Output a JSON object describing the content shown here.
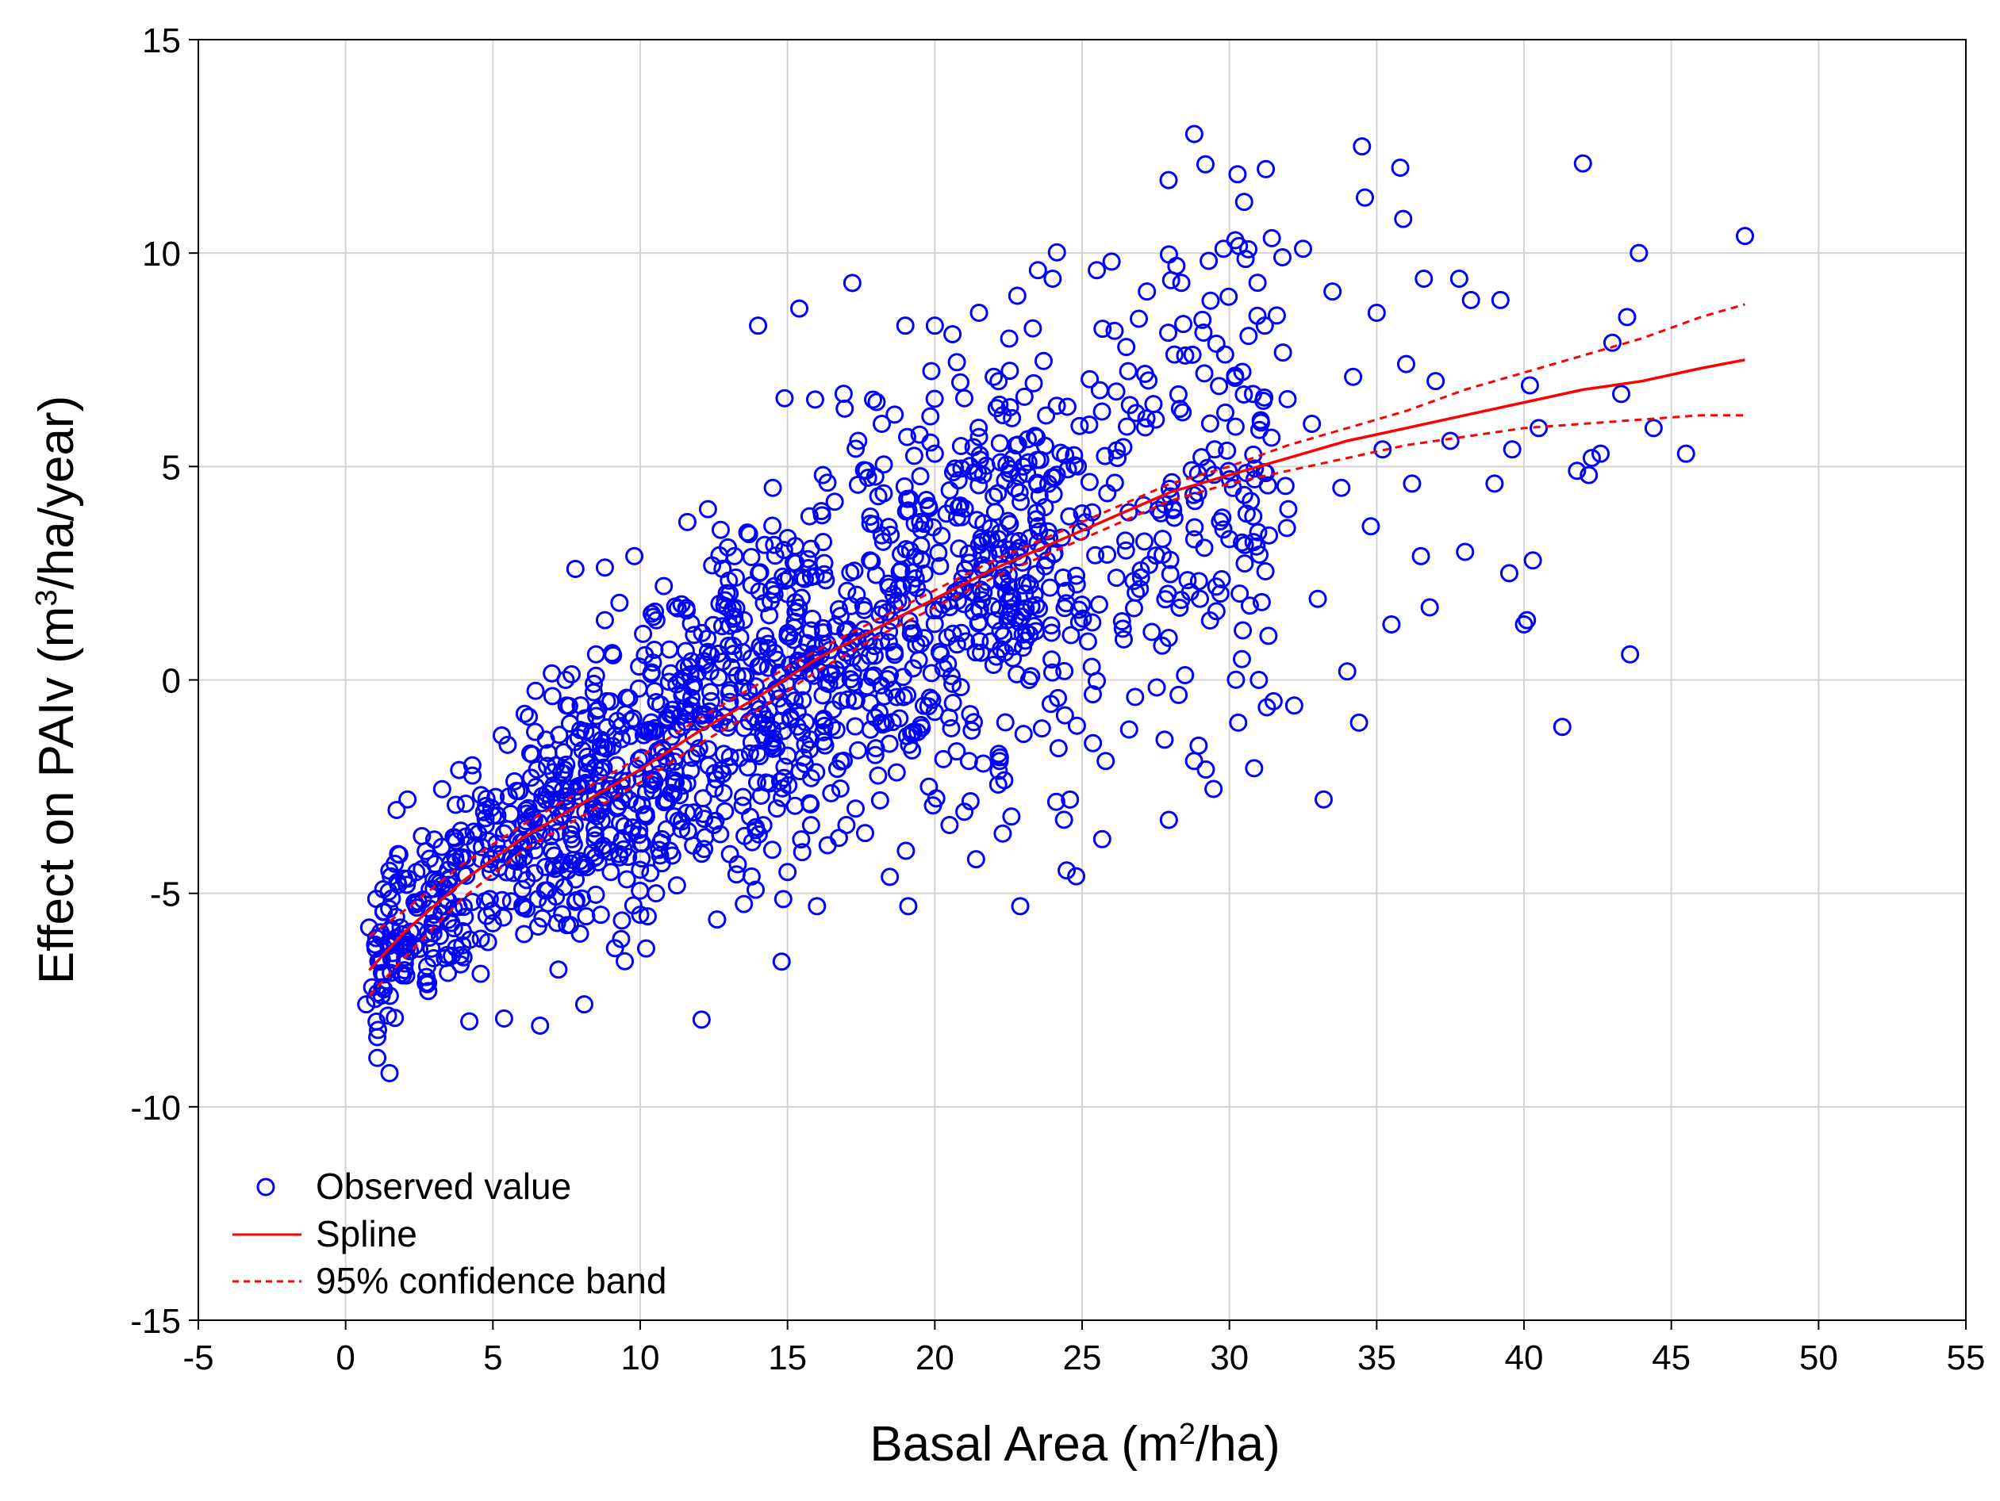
{
  "chart_data": {
    "type": "scatter",
    "xlabel": "Basal Area (m",
    "xlabel_sup": "2",
    "xlabel_end": "/ha)",
    "ylabel": "Effect on PAIv (m",
    "ylabel_sup": "3",
    "ylabel_end": "/ha/year)",
    "xlim": [
      -5,
      55
    ],
    "ylim": [
      -15,
      15
    ],
    "x_ticks": [
      -5,
      0,
      5,
      10,
      15,
      20,
      25,
      30,
      35,
      40,
      45,
      50,
      55
    ],
    "y_ticks": [
      -15,
      -10,
      -5,
      0,
      5,
      10,
      15
    ],
    "grid": true,
    "legend_placement": "bottom-left",
    "colors": {
      "points": "#0000ff",
      "spline": "#ff0000",
      "band": "#ff0000"
    },
    "legend": [
      {
        "label": "Observed value",
        "kind": "marker"
      },
      {
        "label": "Spline",
        "kind": "solid-line"
      },
      {
        "label": "95% confidence band",
        "kind": "dashed-line"
      }
    ],
    "spline": {
      "name": "Spline",
      "x": [
        0.8,
        2,
        4,
        6,
        8,
        10,
        12,
        14,
        16,
        18,
        20,
        22,
        24,
        26,
        28,
        30,
        32,
        34,
        36,
        38,
        40,
        42,
        44,
        46,
        47.5
      ],
      "y": [
        -6.8,
        -5.9,
        -4.7,
        -3.7,
        -2.9,
        -2.1,
        -1.2,
        -0.4,
        0.5,
        1.2,
        1.9,
        2.6,
        3.2,
        3.8,
        4.4,
        4.8,
        5.2,
        5.6,
        5.9,
        6.2,
        6.5,
        6.8,
        7.0,
        7.3,
        7.5
      ]
    },
    "band_upper": {
      "name": "95% confidence band",
      "x": [
        0.8,
        2,
        4,
        6,
        8,
        10,
        12,
        14,
        16,
        18,
        20,
        22,
        24,
        26,
        28,
        30,
        32,
        34,
        36,
        38,
        40,
        42,
        44,
        46,
        47.5
      ],
      "y": [
        -6.0,
        -5.4,
        -4.3,
        -3.4,
        -2.6,
        -1.8,
        -0.9,
        -0.1,
        0.7,
        1.4,
        2.1,
        2.8,
        3.4,
        4.0,
        4.6,
        5.0,
        5.5,
        5.9,
        6.3,
        6.8,
        7.2,
        7.6,
        8.0,
        8.5,
        8.8
      ]
    },
    "band_lower": {
      "name": "95% confidence band",
      "x": [
        0.8,
        2,
        4,
        6,
        8,
        10,
        12,
        14,
        16,
        18,
        20,
        22,
        24,
        26,
        28,
        30,
        32,
        34,
        36,
        38,
        40,
        42,
        44,
        46,
        47.5
      ],
      "y": [
        -7.4,
        -6.5,
        -5.1,
        -4.0,
        -3.2,
        -2.4,
        -1.5,
        -0.7,
        0.2,
        1.0,
        1.7,
        2.4,
        3.0,
        3.6,
        4.2,
        4.6,
        4.9,
        5.2,
        5.5,
        5.7,
        5.9,
        6.0,
        6.1,
        6.2,
        6.2
      ]
    },
    "series": [
      {
        "name": "Observed value",
        "points": [
          [
            0.7,
            -7.6
          ],
          [
            0.9,
            -7.2
          ],
          [
            1.1,
            -8.2
          ],
          [
            1.3,
            -6.9
          ],
          [
            1.0,
            -6.2
          ],
          [
            1.2,
            -6.6
          ],
          [
            0.8,
            -5.8
          ],
          [
            1.5,
            -7.4
          ],
          [
            2.0,
            -6.8
          ],
          [
            2.2,
            -5.9
          ],
          [
            2.5,
            -6.3
          ],
          [
            2.8,
            -7.1
          ],
          [
            3.0,
            -5.5
          ],
          [
            3.2,
            -6.0
          ],
          [
            3.5,
            -4.8
          ],
          [
            2.1,
            -2.8
          ],
          [
            2.4,
            -4.5
          ],
          [
            4.2,
            -8.0
          ],
          [
            4.0,
            -6.5
          ],
          [
            4.3,
            -5.2
          ],
          [
            4.5,
            -3.6
          ],
          [
            4.6,
            -4.2
          ],
          [
            4.3,
            -2.0
          ],
          [
            4.7,
            -3.1
          ],
          [
            5.0,
            -5.7
          ],
          [
            5.2,
            -4.4
          ],
          [
            5.5,
            -3.5
          ],
          [
            5.8,
            -2.6
          ],
          [
            5.3,
            -1.3
          ],
          [
            6.0,
            -4.9
          ],
          [
            6.2,
            -3.8
          ],
          [
            6.5,
            -2.1
          ],
          [
            6.8,
            -1.4
          ],
          [
            7.0,
            -4.0
          ],
          [
            7.2,
            -3.0
          ],
          [
            7.5,
            -0.6
          ],
          [
            7.8,
            -5.2
          ],
          [
            8.0,
            -2.5
          ],
          [
            8.2,
            -1.8
          ],
          [
            8.5,
            0.6
          ],
          [
            8.1,
            -7.6
          ],
          [
            8.8,
            1.4
          ],
          [
            7.8,
            2.6
          ],
          [
            9.0,
            -4.5
          ],
          [
            9.2,
            -2.0
          ],
          [
            9.5,
            -0.8
          ],
          [
            9.8,
            2.9
          ],
          [
            10.0,
            -5.5
          ],
          [
            10.2,
            -3.2
          ],
          [
            10.5,
            -1.2
          ],
          [
            10.5,
            1.6
          ],
          [
            10.8,
            2.2
          ],
          [
            11.0,
            -4.0
          ],
          [
            11.2,
            -2.4
          ],
          [
            11.5,
            0.3
          ],
          [
            11.6,
            3.7
          ],
          [
            12.0,
            -1.6
          ],
          [
            12.1,
            1.1
          ],
          [
            12.3,
            4.0
          ],
          [
            12.5,
            -3.4
          ],
          [
            12.8,
            -2.2
          ],
          [
            13.0,
            0.8
          ],
          [
            13.2,
            2.9
          ],
          [
            13.5,
            -0.5
          ],
          [
            13.8,
            -3.8
          ],
          [
            14.0,
            -1.0
          ],
          [
            14.0,
            8.3
          ],
          [
            14.2,
            1.8
          ],
          [
            14.5,
            4.5
          ],
          [
            14.8,
            -6.6
          ],
          [
            14.9,
            6.6
          ],
          [
            15.0,
            -4.5
          ],
          [
            15.2,
            0.2
          ],
          [
            15.4,
            8.7
          ],
          [
            15.5,
            2.4
          ],
          [
            15.8,
            -2.3
          ],
          [
            16.0,
            -5.3
          ],
          [
            16.2,
            4.8
          ],
          [
            16.5,
            -1.1
          ],
          [
            16.8,
            1.5
          ],
          [
            17.0,
            -3.4
          ],
          [
            17.2,
            9.3
          ],
          [
            17.4,
            5.6
          ],
          [
            17.5,
            0.4
          ],
          [
            17.8,
            2.8
          ],
          [
            18.0,
            -1.6
          ],
          [
            18.2,
            6.0
          ],
          [
            18.5,
            3.4
          ],
          [
            18.8,
            -0.9
          ],
          [
            19.0,
            8.3
          ],
          [
            19.1,
            -5.3
          ],
          [
            19.2,
            1.2
          ],
          [
            19.5,
            3.7
          ],
          [
            19.8,
            -2.5
          ],
          [
            20.0,
            5.3
          ],
          [
            20.0,
            8.3
          ],
          [
            20.2,
            0.6
          ],
          [
            20.5,
            -3.4
          ],
          [
            20.6,
            8.1
          ],
          [
            20.8,
            2.1
          ],
          [
            21.0,
            6.6
          ],
          [
            21.2,
            -0.8
          ],
          [
            21.4,
            -4.2
          ],
          [
            21.5,
            8.6
          ],
          [
            21.8,
            3.3
          ],
          [
            22.0,
            7.1
          ],
          [
            22.2,
            -1.9
          ],
          [
            22.5,
            1.5
          ],
          [
            22.6,
            -3.2
          ],
          [
            22.8,
            9.0
          ],
          [
            22.9,
            -5.3
          ],
          [
            23.0,
            5.0
          ],
          [
            23.2,
            0.0
          ],
          [
            23.5,
            9.6
          ],
          [
            23.8,
            2.8
          ],
          [
            24.0,
            9.4
          ],
          [
            24.2,
            -1.6
          ],
          [
            24.5,
            6.4
          ],
          [
            24.8,
            -4.6
          ],
          [
            25.0,
            3.9
          ],
          [
            25.2,
            0.9
          ],
          [
            25.5,
            9.6
          ],
          [
            25.8,
            -1.9
          ],
          [
            26.0,
            9.8
          ],
          [
            26.2,
            5.2
          ],
          [
            26.5,
            7.8
          ],
          [
            26.8,
            -0.4
          ],
          [
            27.0,
            2.4
          ],
          [
            27.2,
            9.1
          ],
          [
            27.5,
            6.1
          ],
          [
            27.8,
            -1.4
          ],
          [
            28.0,
            4.3
          ],
          [
            28.2,
            9.7
          ],
          [
            28.5,
            7.6
          ],
          [
            28.8,
            -1.9
          ],
          [
            29.0,
            1.9
          ],
          [
            29.2,
            -2.1
          ],
          [
            29.5,
            5.4
          ],
          [
            29.8,
            10.1
          ],
          [
            30.0,
            3.3
          ],
          [
            30.2,
            10.3
          ],
          [
            30.3,
            -1.0
          ],
          [
            30.5,
            11.2
          ],
          [
            30.8,
            6.7
          ],
          [
            31.0,
            0.0
          ],
          [
            31.2,
            8.3
          ],
          [
            31.5,
            -0.5
          ],
          [
            31.8,
            9.9
          ],
          [
            32.0,
            4.0
          ],
          [
            32.2,
            -0.6
          ],
          [
            32.5,
            10.1
          ],
          [
            32.8,
            6.0
          ],
          [
            33.0,
            1.9
          ],
          [
            33.2,
            -2.8
          ],
          [
            33.5,
            9.1
          ],
          [
            33.8,
            4.5
          ],
          [
            34.0,
            0.2
          ],
          [
            34.2,
            7.1
          ],
          [
            34.4,
            -1.0
          ],
          [
            34.5,
            12.5
          ],
          [
            34.6,
            11.3
          ],
          [
            34.8,
            3.6
          ],
          [
            35.0,
            8.6
          ],
          [
            35.2,
            5.4
          ],
          [
            35.5,
            1.3
          ],
          [
            35.8,
            12.0
          ],
          [
            35.9,
            10.8
          ],
          [
            36.0,
            7.4
          ],
          [
            36.2,
            4.6
          ],
          [
            36.5,
            2.9
          ],
          [
            36.6,
            9.4
          ],
          [
            36.8,
            1.7
          ],
          [
            37.0,
            7.0
          ],
          [
            37.5,
            5.6
          ],
          [
            37.8,
            9.4
          ],
          [
            38.0,
            3.0
          ],
          [
            38.2,
            8.9
          ],
          [
            39.0,
            4.6
          ],
          [
            39.2,
            8.9
          ],
          [
            39.5,
            2.5
          ],
          [
            39.6,
            5.4
          ],
          [
            40.0,
            1.3
          ],
          [
            40.1,
            1.4
          ],
          [
            40.2,
            6.9
          ],
          [
            40.3,
            2.8
          ],
          [
            40.5,
            5.9
          ],
          [
            41.3,
            -1.1
          ],
          [
            41.8,
            4.9
          ],
          [
            42.0,
            12.1
          ],
          [
            42.2,
            4.8
          ],
          [
            42.3,
            5.2
          ],
          [
            42.6,
            5.3
          ],
          [
            43.0,
            7.9
          ],
          [
            43.3,
            6.7
          ],
          [
            43.5,
            8.5
          ],
          [
            43.6,
            0.6
          ],
          [
            43.9,
            10.0
          ],
          [
            44.4,
            5.9
          ],
          [
            45.5,
            5.3
          ],
          [
            47.5,
            10.4
          ]
        ]
      }
    ]
  }
}
